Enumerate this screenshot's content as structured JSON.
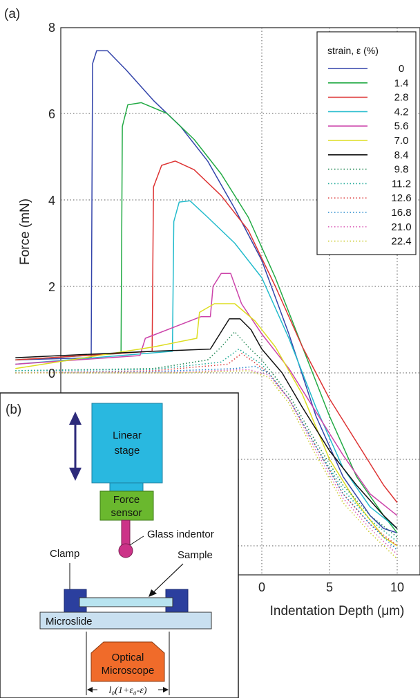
{
  "panel_a_label": "(a)",
  "panel_b_label": "(b)",
  "chart_data": {
    "type": "line",
    "title": "",
    "xlabel": "Indentation Depth (μm)",
    "ylabel": "Force (mN)",
    "xlim": [
      -20,
      10.5
    ],
    "ylim": [
      -4.6,
      8
    ],
    "x_ticks": [
      0,
      5,
      10
    ],
    "y_ticks": [
      0,
      2,
      4,
      6,
      8
    ],
    "grid": true,
    "legend_position": "top-right",
    "legend_title": "strain, ε (%)",
    "series": [
      {
        "name": "0",
        "color": "#3344aa",
        "dash": "solid",
        "points": [
          [
            -18.2,
            0.3
          ],
          [
            -12.6,
            0.35
          ],
          [
            -12.5,
            7.15
          ],
          [
            -12.2,
            7.45
          ],
          [
            -11.4,
            7.45
          ],
          [
            -10,
            7.0
          ],
          [
            -8,
            6.3
          ],
          [
            -6,
            5.7
          ],
          [
            -4,
            4.9
          ],
          [
            -2,
            3.8
          ],
          [
            0,
            2.6
          ],
          [
            2,
            0.9
          ],
          [
            4,
            -1.0
          ],
          [
            6,
            -2.4
          ],
          [
            8,
            -3.3
          ],
          [
            9,
            -3.6
          ],
          [
            10,
            -3.7
          ]
        ]
      },
      {
        "name": "1.4",
        "color": "#22aa44",
        "dash": "solid",
        "points": [
          [
            -18.2,
            0.3
          ],
          [
            -10.4,
            0.45
          ],
          [
            -10.3,
            5.7
          ],
          [
            -9.9,
            6.2
          ],
          [
            -8.9,
            6.25
          ],
          [
            -7,
            6.0
          ],
          [
            -5,
            5.4
          ],
          [
            -3,
            4.6
          ],
          [
            -1,
            3.6
          ],
          [
            1,
            2.2
          ],
          [
            3,
            0.6
          ],
          [
            5,
            -1.0
          ],
          [
            7,
            -2.4
          ],
          [
            9,
            -3.3
          ],
          [
            10,
            -3.7
          ]
        ]
      },
      {
        "name": "2.8",
        "color": "#dd3333",
        "dash": "solid",
        "points": [
          [
            -18.2,
            0.3
          ],
          [
            -8.1,
            0.5
          ],
          [
            -8.0,
            4.3
          ],
          [
            -7.4,
            4.8
          ],
          [
            -6.4,
            4.9
          ],
          [
            -5,
            4.7
          ],
          [
            -3,
            4.1
          ],
          [
            -1,
            3.3
          ],
          [
            1,
            2.0
          ],
          [
            3,
            0.6
          ],
          [
            5,
            -0.6
          ],
          [
            7,
            -1.6
          ],
          [
            9,
            -2.6
          ],
          [
            10,
            -3.0
          ]
        ]
      },
      {
        "name": "4.2",
        "color": "#22bbcc",
        "dash": "solid",
        "points": [
          [
            -18.2,
            0.2
          ],
          [
            -6.6,
            0.5
          ],
          [
            -6.5,
            3.5
          ],
          [
            -6.1,
            3.95
          ],
          [
            -5.3,
            3.98
          ],
          [
            -4,
            3.6
          ],
          [
            -2,
            3.0
          ],
          [
            0,
            2.2
          ],
          [
            2,
            0.8
          ],
          [
            4,
            -0.8
          ],
          [
            6,
            -2.2
          ],
          [
            8,
            -3.1
          ],
          [
            10,
            -3.6
          ]
        ]
      },
      {
        "name": "5.6",
        "color": "#cc44aa",
        "dash": "solid",
        "points": [
          [
            -18.2,
            0.2
          ],
          [
            -9,
            0.4
          ],
          [
            -8.6,
            0.8
          ],
          [
            -4.5,
            1.3
          ],
          [
            -3.8,
            1.3
          ],
          [
            -3.6,
            2.0
          ],
          [
            -3.0,
            2.3
          ],
          [
            -2.3,
            2.3
          ],
          [
            -1.5,
            1.6
          ],
          [
            0,
            0.9
          ],
          [
            2,
            0.1
          ],
          [
            4,
            -0.9
          ],
          [
            6,
            -1.9
          ],
          [
            8,
            -2.8
          ],
          [
            10,
            -3.3
          ]
        ]
      },
      {
        "name": "7.0",
        "color": "#dddd22",
        "dash": "solid",
        "points": [
          [
            -18.2,
            0.1
          ],
          [
            -8,
            0.6
          ],
          [
            -4.8,
            0.8
          ],
          [
            -4.6,
            1.4
          ],
          [
            -3.5,
            1.6
          ],
          [
            -2,
            1.6
          ],
          [
            -0.5,
            1.2
          ],
          [
            1,
            0.6
          ],
          [
            3,
            -0.5
          ],
          [
            5,
            -2.0
          ],
          [
            7,
            -3.0
          ],
          [
            9,
            -3.8
          ],
          [
            10,
            -4.0
          ]
        ]
      },
      {
        "name": "8.4",
        "color": "#111111",
        "dash": "solid",
        "points": [
          [
            -18.2,
            0.35
          ],
          [
            -8,
            0.5
          ],
          [
            -3.8,
            0.55
          ],
          [
            -3.3,
            0.8
          ],
          [
            -2.8,
            1.05
          ],
          [
            -2.4,
            1.25
          ],
          [
            -1.6,
            1.25
          ],
          [
            -0.8,
            1.0
          ],
          [
            0,
            0.55
          ],
          [
            1.5,
            0.0
          ],
          [
            3,
            -0.8
          ],
          [
            5,
            -1.8
          ],
          [
            7,
            -2.6
          ],
          [
            9,
            -3.3
          ],
          [
            10,
            -3.6
          ]
        ]
      },
      {
        "name": "9.8",
        "color": "#228855",
        "dash": "dotted",
        "points": [
          [
            -18.2,
            0.05
          ],
          [
            -8,
            0.1
          ],
          [
            -4,
            0.3
          ],
          [
            -3,
            0.6
          ],
          [
            -2,
            0.95
          ],
          [
            -1,
            0.6
          ],
          [
            0,
            0.3
          ],
          [
            2,
            -0.5
          ],
          [
            4,
            -1.6
          ],
          [
            6,
            -2.6
          ],
          [
            8,
            -3.3
          ],
          [
            10,
            -3.8
          ]
        ]
      },
      {
        "name": "11.2",
        "color": "#22aa99",
        "dash": "dotted",
        "points": [
          [
            -18.2,
            0.05
          ],
          [
            -8,
            0.08
          ],
          [
            -3,
            0.25
          ],
          [
            -1.7,
            0.55
          ],
          [
            -1,
            0.4
          ],
          [
            0,
            0.2
          ],
          [
            2,
            -0.6
          ],
          [
            4,
            -1.7
          ],
          [
            6,
            -2.7
          ],
          [
            8,
            -3.4
          ],
          [
            10,
            -3.9
          ]
        ]
      },
      {
        "name": "12.6",
        "color": "#dd4444",
        "dash": "dotted",
        "points": [
          [
            -18.2,
            0.0
          ],
          [
            -8,
            0.05
          ],
          [
            -2.5,
            0.2
          ],
          [
            -1.5,
            0.45
          ],
          [
            -0.8,
            0.3
          ],
          [
            0.5,
            0.0
          ],
          [
            2,
            -0.6
          ],
          [
            4,
            -1.7
          ],
          [
            6,
            -2.8
          ],
          [
            8,
            -3.5
          ],
          [
            10,
            -4.0
          ]
        ]
      },
      {
        "name": "16.8",
        "color": "#2288cc",
        "dash": "dotted",
        "points": [
          [
            -18.2,
            0.0
          ],
          [
            -8,
            0.03
          ],
          [
            -2,
            0.1
          ],
          [
            -0.5,
            0.15
          ],
          [
            0.5,
            0.0
          ],
          [
            2,
            -0.6
          ],
          [
            4,
            -1.7
          ],
          [
            6,
            -2.8
          ],
          [
            8,
            -3.5
          ],
          [
            10,
            -4.1
          ]
        ]
      },
      {
        "name": "21.0",
        "color": "#dd66bb",
        "dash": "dotted",
        "points": [
          [
            -18.2,
            0.0
          ],
          [
            -6,
            0.02
          ],
          [
            -1,
            0.08
          ],
          [
            0.5,
            -0.05
          ],
          [
            2,
            -0.6
          ],
          [
            4,
            -1.8
          ],
          [
            6,
            -2.9
          ],
          [
            8,
            -3.6
          ],
          [
            10,
            -4.2
          ]
        ]
      },
      {
        "name": "22.4",
        "color": "#cccc33",
        "dash": "dotted",
        "points": [
          [
            -18.2,
            0.0
          ],
          [
            -6,
            0.0
          ],
          [
            -1,
            0.05
          ],
          [
            0.5,
            -0.1
          ],
          [
            2,
            -0.7
          ],
          [
            4,
            -1.9
          ],
          [
            6,
            -3.0
          ],
          [
            8,
            -3.7
          ],
          [
            10,
            -4.3
          ]
        ]
      }
    ]
  },
  "diagram": {
    "linear_stage_line1": "Linear",
    "linear_stage_line2": "stage",
    "force_sensor_line1": "Force",
    "force_sensor_line2": "sensor",
    "glass_indentor": "Glass indentor",
    "clamp": "Clamp",
    "sample": "Sample",
    "microslide": "Microslide",
    "optical_line1": "Optical",
    "optical_line2": "Microscope",
    "formula": "l₀(1+ε₀-ε)",
    "colors": {
      "stage": "#29b8e0",
      "sensor": "#6ab82e",
      "indentor": "#cc3388",
      "clamp": "#2b3f9e",
      "sample": "#b8e4f0",
      "microslide": "#c9e0f0",
      "microscope": "#f06b2a",
      "arrow": "#2d2a7a"
    }
  }
}
